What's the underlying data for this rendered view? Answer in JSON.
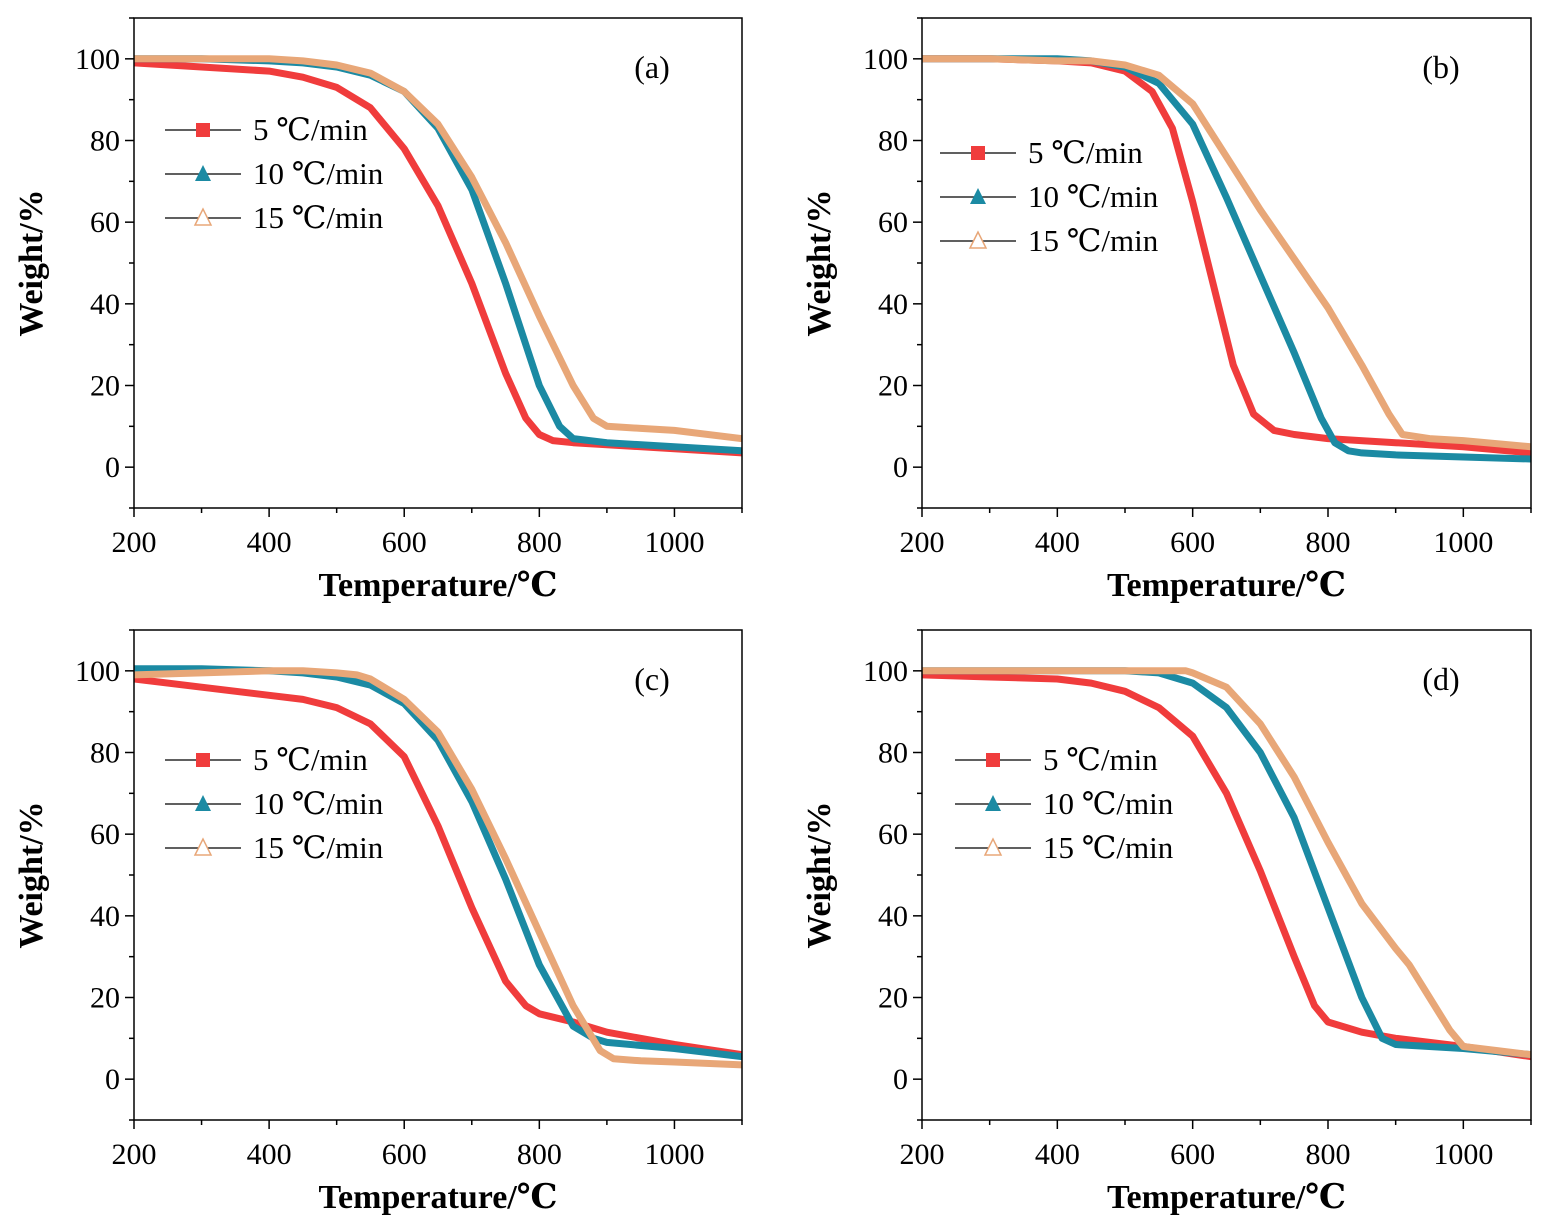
{
  "chart_data": [
    {
      "type": "line",
      "panel_label": "(a)",
      "xlabel": "Temperature/℃",
      "ylabel": "Weight/%",
      "xlim": [
        200,
        1100
      ],
      "ylim": [
        -10,
        110
      ],
      "xticks": [
        200,
        400,
        600,
        800,
        1000
      ],
      "yticks": [
        0,
        20,
        40,
        60,
        80,
        100
      ],
      "legend_position": "upper-left",
      "series": [
        {
          "name": "5 ℃/min",
          "color": "#f03c3c",
          "marker": "square",
          "x": [
            200,
            300,
            400,
            450,
            500,
            550,
            600,
            650,
            700,
            750,
            780,
            800,
            820,
            850,
            900,
            1000,
            1100
          ],
          "y": [
            99.0,
            98.0,
            97.0,
            95.5,
            93.0,
            88.0,
            78.0,
            64.0,
            45.0,
            23.0,
            12.0,
            8.0,
            6.5,
            6.0,
            5.5,
            4.5,
            3.5
          ]
        },
        {
          "name": "10 ℃/min",
          "color": "#1b8aa3",
          "marker": "triangle",
          "x": [
            200,
            300,
            400,
            450,
            500,
            550,
            600,
            650,
            700,
            750,
            800,
            830,
            850,
            900,
            1000,
            1100
          ],
          "y": [
            100.0,
            100.0,
            99.5,
            99.0,
            98.0,
            96.0,
            92.0,
            83.0,
            68.0,
            45.0,
            20.0,
            10.0,
            7.0,
            6.0,
            5.0,
            4.0
          ]
        },
        {
          "name": "15 ℃/min",
          "color": "#e8a778",
          "marker": "triangle-open",
          "x": [
            200,
            300,
            400,
            450,
            500,
            550,
            600,
            650,
            700,
            750,
            800,
            850,
            880,
            900,
            950,
            1000,
            1100
          ],
          "y": [
            100.0,
            100.0,
            100.0,
            99.5,
            98.5,
            96.5,
            92.0,
            84.0,
            71.0,
            55.0,
            37.0,
            20.0,
            12.0,
            10.0,
            9.5,
            9.0,
            7.0
          ]
        }
      ]
    },
    {
      "type": "line",
      "panel_label": "(b)",
      "xlabel": "Temperature/℃",
      "ylabel": "Weight/%",
      "xlim": [
        200,
        1100
      ],
      "ylim": [
        -10,
        110
      ],
      "xticks": [
        200,
        400,
        600,
        800,
        1000
      ],
      "yticks": [
        0,
        20,
        40,
        60,
        80,
        100
      ],
      "legend_position": "upper-left",
      "series": [
        {
          "name": "5 ℃/min",
          "color": "#f03c3c",
          "marker": "square",
          "x": [
            200,
            300,
            400,
            450,
            500,
            540,
            570,
            600,
            630,
            660,
            690,
            720,
            750,
            800,
            900,
            1000,
            1100
          ],
          "y": [
            100.0,
            100.0,
            99.5,
            99.0,
            97.0,
            92.0,
            83.0,
            65.0,
            45.0,
            25.0,
            13.0,
            9.0,
            8.0,
            7.0,
            6.0,
            5.0,
            3.5
          ]
        },
        {
          "name": "10 ℃/min",
          "color": "#1b8aa3",
          "marker": "triangle",
          "x": [
            200,
            300,
            400,
            450,
            500,
            550,
            600,
            650,
            700,
            750,
            790,
            810,
            830,
            850,
            900,
            1000,
            1100
          ],
          "y": [
            100.0,
            100.0,
            100.0,
            99.5,
            98.0,
            94.0,
            84.0,
            66.0,
            47.0,
            28.0,
            12.0,
            6.0,
            4.0,
            3.5,
            3.0,
            2.5,
            2.0
          ]
        },
        {
          "name": "15 ℃/min",
          "color": "#e8a778",
          "marker": "triangle-open",
          "x": [
            200,
            300,
            400,
            450,
            500,
            550,
            600,
            650,
            700,
            750,
            800,
            850,
            890,
            910,
            950,
            1000,
            1100
          ],
          "y": [
            100.0,
            100.0,
            99.5,
            99.5,
            98.5,
            96.0,
            89.0,
            76.0,
            63.0,
            51.0,
            39.0,
            25.0,
            13.0,
            8.0,
            7.0,
            6.5,
            5.0
          ]
        }
      ]
    },
    {
      "type": "line",
      "panel_label": "(c)",
      "xlabel": "Temperature/℃",
      "ylabel": "Weight/%",
      "xlim": [
        200,
        1100
      ],
      "ylim": [
        -10,
        110
      ],
      "xticks": [
        200,
        400,
        600,
        800,
        1000
      ],
      "yticks": [
        0,
        20,
        40,
        60,
        80,
        100
      ],
      "legend_position": "upper-left",
      "series": [
        {
          "name": "5 ℃/min",
          "color": "#f03c3c",
          "marker": "square",
          "x": [
            200,
            300,
            400,
            450,
            500,
            550,
            600,
            650,
            700,
            750,
            780,
            800,
            850,
            900,
            1000,
            1100
          ],
          "y": [
            98.0,
            96.0,
            94.0,
            93.0,
            91.0,
            87.0,
            79.0,
            62.0,
            42.0,
            24.0,
            18.0,
            16.0,
            14.0,
            11.5,
            8.5,
            6.0
          ]
        },
        {
          "name": "10 ℃/min",
          "color": "#1b8aa3",
          "marker": "triangle",
          "x": [
            200,
            300,
            400,
            450,
            500,
            550,
            600,
            650,
            700,
            750,
            800,
            850,
            880,
            900,
            1000,
            1100
          ],
          "y": [
            100.5,
            100.5,
            100.0,
            99.5,
            98.5,
            96.5,
            92.0,
            83.0,
            68.0,
            49.0,
            28.0,
            13.0,
            10.0,
            9.0,
            7.5,
            5.5
          ]
        },
        {
          "name": "15 ℃/min",
          "color": "#e8a778",
          "marker": "triangle-open",
          "x": [
            200,
            300,
            400,
            450,
            500,
            530,
            550,
            600,
            650,
            700,
            750,
            800,
            850,
            890,
            910,
            950,
            1000,
            1100
          ],
          "y": [
            99.0,
            99.5,
            100.0,
            100.0,
            99.5,
            99.0,
            98.0,
            93.0,
            85.0,
            71.0,
            54.0,
            36.0,
            18.0,
            7.0,
            5.0,
            4.5,
            4.2,
            3.5
          ]
        }
      ]
    },
    {
      "type": "line",
      "panel_label": "(d)",
      "xlabel": "Temperature/℃",
      "ylabel": "Weight/%",
      "xlim": [
        200,
        1100
      ],
      "ylim": [
        -10,
        110
      ],
      "xticks": [
        200,
        400,
        600,
        800,
        1000
      ],
      "yticks": [
        0,
        20,
        40,
        60,
        80,
        100
      ],
      "legend_position": "upper-left",
      "series": [
        {
          "name": "5 ℃/min",
          "color": "#f03c3c",
          "marker": "square",
          "x": [
            200,
            300,
            400,
            450,
            500,
            550,
            600,
            650,
            700,
            750,
            780,
            800,
            850,
            900,
            1000,
            1100
          ],
          "y": [
            99.0,
            98.5,
            98.0,
            97.0,
            95.0,
            91.0,
            84.0,
            70.0,
            51.0,
            30.0,
            18.0,
            14.0,
            11.5,
            10.0,
            8.0,
            5.5
          ]
        },
        {
          "name": "10 ℃/min",
          "color": "#1b8aa3",
          "marker": "triangle",
          "x": [
            200,
            300,
            400,
            450,
            500,
            550,
            600,
            650,
            700,
            750,
            800,
            850,
            880,
            900,
            1000,
            1100
          ],
          "y": [
            100.0,
            100.0,
            100.0,
            100.0,
            100.0,
            99.5,
            97.0,
            91.0,
            80.0,
            64.0,
            42.0,
            20.0,
            10.0,
            8.5,
            7.5,
            6.0
          ]
        },
        {
          "name": "15 ℃/min",
          "color": "#e8a778",
          "marker": "triangle-open",
          "x": [
            200,
            300,
            400,
            500,
            550,
            590,
            600,
            650,
            700,
            750,
            800,
            850,
            900,
            920,
            950,
            980,
            1000,
            1050,
            1100
          ],
          "y": [
            100.0,
            100.0,
            100.0,
            100.0,
            100.0,
            100.0,
            99.5,
            96.0,
            87.0,
            74.0,
            58.0,
            43.0,
            32.0,
            28.0,
            20.0,
            12.0,
            8.0,
            7.0,
            6.0
          ]
        }
      ]
    }
  ]
}
